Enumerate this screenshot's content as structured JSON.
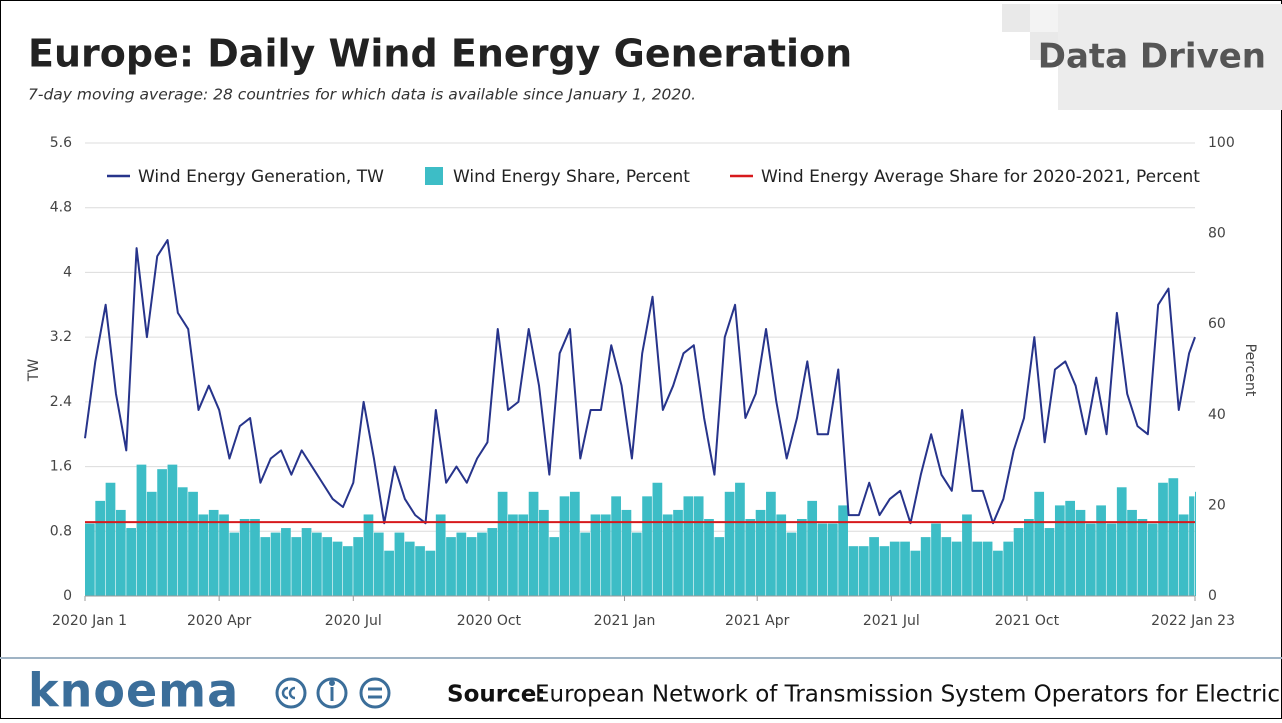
{
  "chart_data": {
    "type": "bar-line",
    "title": "Europe: Daily Wind Energy Generation",
    "subtitle": "7-day moving average: 28 countries for which data is available since January 1, 2020.",
    "badge": "Data Driven",
    "y_label": "TW",
    "y2_label": "Percent",
    "brand": "knoema",
    "source_label": "Source:",
    "source": "European Network of Transmission System Operators for Electricity",
    "x": [
      "2020-01-01",
      "2020-01-08",
      "2020-01-15",
      "2020-01-22",
      "2020-01-29",
      "2020-02-05",
      "2020-02-12",
      "2020-02-19",
      "2020-02-26",
      "2020-03-04",
      "2020-03-11",
      "2020-03-18",
      "2020-03-25",
      "2020-04-01",
      "2020-04-08",
      "2020-04-15",
      "2020-04-22",
      "2020-04-29",
      "2020-05-06",
      "2020-05-13",
      "2020-05-20",
      "2020-05-27",
      "2020-06-03",
      "2020-06-10",
      "2020-06-17",
      "2020-06-24",
      "2020-07-01",
      "2020-07-08",
      "2020-07-15",
      "2020-07-22",
      "2020-07-29",
      "2020-08-05",
      "2020-08-12",
      "2020-08-19",
      "2020-08-26",
      "2020-09-02",
      "2020-09-09",
      "2020-09-16",
      "2020-09-23",
      "2020-09-30",
      "2020-10-07",
      "2020-10-14",
      "2020-10-21",
      "2020-10-28",
      "2020-11-04",
      "2020-11-11",
      "2020-11-18",
      "2020-11-25",
      "2020-12-02",
      "2020-12-09",
      "2020-12-16",
      "2020-12-23",
      "2020-12-30",
      "2021-01-06",
      "2021-01-13",
      "2021-01-20",
      "2021-01-27",
      "2021-02-03",
      "2021-02-10",
      "2021-02-17",
      "2021-02-24",
      "2021-03-03",
      "2021-03-10",
      "2021-03-17",
      "2021-03-24",
      "2021-03-31",
      "2021-04-07",
      "2021-04-14",
      "2021-04-21",
      "2021-04-28",
      "2021-05-05",
      "2021-05-12",
      "2021-05-19",
      "2021-05-26",
      "2021-06-02",
      "2021-06-09",
      "2021-06-16",
      "2021-06-23",
      "2021-06-30",
      "2021-07-07",
      "2021-07-14",
      "2021-07-21",
      "2021-07-28",
      "2021-08-04",
      "2021-08-11",
      "2021-08-18",
      "2021-08-25",
      "2021-09-01",
      "2021-09-08",
      "2021-09-15",
      "2021-09-22",
      "2021-09-29",
      "2021-10-06",
      "2021-10-13",
      "2021-10-20",
      "2021-10-27",
      "2021-11-03",
      "2021-11-10",
      "2021-11-17",
      "2021-11-24",
      "2021-12-01",
      "2021-12-08",
      "2021-12-15",
      "2021-12-22",
      "2021-12-29",
      "2022-01-05",
      "2022-01-12",
      "2022-01-19",
      "2022-01-23"
    ],
    "series": [
      {
        "name": "Wind Energy Generation, TW",
        "kind": "line",
        "axis": "y",
        "color": "#27348b",
        "values": [
          1.95,
          2.9,
          3.6,
          2.5,
          1.8,
          4.3,
          3.2,
          4.2,
          4.4,
          3.5,
          3.3,
          2.3,
          2.6,
          2.3,
          1.7,
          2.1,
          2.2,
          1.4,
          1.7,
          1.8,
          1.5,
          1.8,
          1.6,
          1.4,
          1.2,
          1.1,
          1.4,
          2.4,
          1.7,
          0.9,
          1.6,
          1.2,
          1.0,
          0.9,
          2.3,
          1.4,
          1.6,
          1.4,
          1.7,
          1.9,
          3.3,
          2.3,
          2.4,
          3.3,
          2.6,
          1.5,
          3.0,
          3.3,
          1.7,
          2.3,
          2.3,
          3.1,
          2.6,
          1.7,
          3.0,
          3.7,
          2.3,
          2.6,
          3.0,
          3.1,
          2.2,
          1.5,
          3.2,
          3.6,
          2.2,
          2.5,
          3.3,
          2.4,
          1.7,
          2.2,
          2.9,
          2.0,
          2.0,
          2.8,
          1.0,
          1.0,
          1.4,
          1.0,
          1.2,
          1.3,
          0.9,
          1.5,
          2.0,
          1.5,
          1.3,
          2.3,
          1.3,
          1.3,
          0.9,
          1.2,
          1.8,
          2.2,
          3.2,
          1.9,
          2.8,
          2.9,
          2.6,
          2.0,
          2.7,
          2.0,
          3.5,
          2.5,
          2.1,
          2.0,
          3.6,
          3.8,
          2.3,
          3.0,
          3.2
        ]
      },
      {
        "name": "Wind Energy Share, Percent",
        "kind": "bar",
        "axis": "y2",
        "color": "#3dbdc6",
        "values": [
          16,
          21,
          25,
          19,
          15,
          29,
          23,
          28,
          29,
          24,
          23,
          18,
          19,
          18,
          14,
          17,
          17,
          13,
          14,
          15,
          13,
          15,
          14,
          13,
          12,
          11,
          13,
          18,
          14,
          10,
          14,
          12,
          11,
          10,
          18,
          13,
          14,
          13,
          14,
          15,
          23,
          18,
          18,
          23,
          19,
          13,
          22,
          23,
          14,
          18,
          18,
          22,
          19,
          14,
          22,
          25,
          18,
          19,
          22,
          22,
          17,
          13,
          23,
          25,
          17,
          19,
          23,
          18,
          14,
          17,
          21,
          16,
          16,
          20,
          11,
          11,
          13,
          11,
          12,
          12,
          10,
          13,
          16,
          13,
          12,
          18,
          12,
          12,
          10,
          12,
          15,
          17,
          23,
          15,
          20,
          21,
          19,
          16,
          20,
          16,
          24,
          19,
          17,
          16,
          25,
          26,
          18,
          22,
          23
        ]
      }
    ],
    "reference_lines": [
      {
        "name": "Wind Energy Average Share for 2020-2021, Percent",
        "axis": "y2",
        "color": "#d7191c",
        "value": 16.3
      }
    ],
    "xlim": [
      "2020-01-01",
      "2022-01-23"
    ],
    "xticks": [
      {
        "value": "2020-01-01",
        "label": "2020 Jan 1"
      },
      {
        "value": "2020-04-01",
        "label": "2020 Apr"
      },
      {
        "value": "2020-07-01",
        "label": "2020 Jul"
      },
      {
        "value": "2020-10-01",
        "label": "2020 Oct"
      },
      {
        "value": "2021-01-01",
        "label": "2021 Jan"
      },
      {
        "value": "2021-04-01",
        "label": "2021 Apr"
      },
      {
        "value": "2021-07-01",
        "label": "2021 Jul"
      },
      {
        "value": "2021-10-01",
        "label": "2021 Oct"
      },
      {
        "value": "2022-01-23",
        "label": "2022 Jan 23"
      }
    ],
    "ylim": [
      0,
      5.6
    ],
    "yticks": [
      0,
      0.8,
      1.6,
      2.4,
      3.2,
      4,
      4.8,
      5.6
    ],
    "y2lim": [
      0,
      100
    ],
    "y2ticks": [
      0,
      20,
      40,
      60,
      80,
      100
    ],
    "grid": true
  }
}
